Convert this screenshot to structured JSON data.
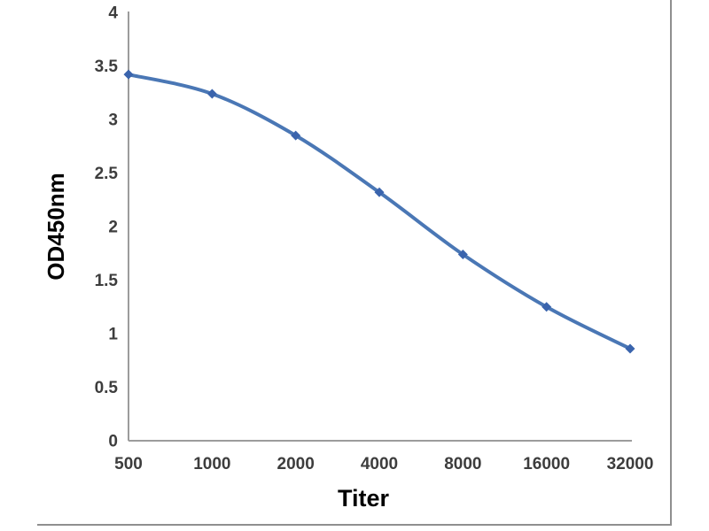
{
  "chart_data": {
    "type": "line",
    "title": "",
    "xlabel": "Titer",
    "ylabel": "OD450nm",
    "categories": [
      "500",
      "1000",
      "2000",
      "4000",
      "8000",
      "16000",
      "32000"
    ],
    "series": [
      {
        "name": "OD450nm",
        "values": [
          3.42,
          3.24,
          2.85,
          2.32,
          1.74,
          1.25,
          0.86
        ]
      }
    ],
    "ylim": [
      0,
      4
    ],
    "yticks": [
      0,
      0.5,
      1,
      1.5,
      2,
      2.5,
      3,
      3.5,
      4
    ],
    "grid": false,
    "legend": "none",
    "smooth": true,
    "marker": "diamond",
    "line_color": "#4a77b5",
    "marker_color": "#3a64ad",
    "axis_color": "#9c9c9c",
    "tick_label_color": "#3d3d3d",
    "axis_title_color": "#0f0f0f"
  }
}
